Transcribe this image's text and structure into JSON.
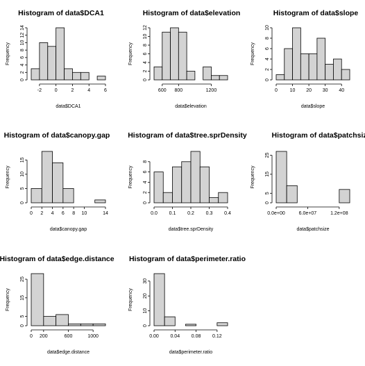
{
  "chart_data": [
    {
      "type": "bar",
      "title": "Histogram of data$DCA1",
      "xlabel": "data$DCA1",
      "ylabel": "Frequency",
      "bin_edges": [
        -3,
        -2,
        -1,
        0,
        1,
        2,
        3,
        4,
        5,
        6
      ],
      "values": [
        3,
        10,
        9,
        14,
        3,
        2,
        2,
        0,
        1
      ],
      "xticks": [
        {
          "value": -2,
          "label": "-2"
        },
        {
          "value": 0,
          "label": "0"
        },
        {
          "value": 2,
          "label": "2"
        },
        {
          "value": 4,
          "label": "4"
        },
        {
          "value": 6,
          "label": "6"
        }
      ],
      "yticks": [
        {
          "value": 0,
          "label": "0"
        },
        {
          "value": 2,
          "label": "2"
        },
        {
          "value": 4,
          "label": "4"
        },
        {
          "value": 6,
          "label": "6"
        },
        {
          "value": 8,
          "label": "8"
        },
        {
          "value": 10,
          "label": "10"
        },
        {
          "value": 12,
          "label": "12"
        },
        {
          "value": 14,
          "label": "14"
        }
      ],
      "ylim": [
        0,
        14
      ]
    },
    {
      "type": "bar",
      "title": "Histogram of data$elevation",
      "xlabel": "data$elevation",
      "ylabel": "Frequency",
      "bin_edges": [
        500,
        600,
        700,
        800,
        900,
        1000,
        1100,
        1200,
        1300,
        1400
      ],
      "values": [
        3,
        11,
        12,
        11,
        2,
        0,
        3,
        1,
        1
      ],
      "xticks": [
        {
          "value": 600,
          "label": "600"
        },
        {
          "value": 800,
          "label": "800"
        },
        {
          "value": 1200,
          "label": "1200"
        }
      ],
      "yticks": [
        {
          "value": 0,
          "label": "0"
        },
        {
          "value": 2,
          "label": "2"
        },
        {
          "value": 4,
          "label": "4"
        },
        {
          "value": 6,
          "label": "6"
        },
        {
          "value": 8,
          "label": "8"
        },
        {
          "value": 10,
          "label": "10"
        },
        {
          "value": 12,
          "label": "12"
        }
      ],
      "ylim": [
        0,
        12
      ]
    },
    {
      "type": "bar",
      "title": "Histogram of data$slope",
      "xlabel": "data$slope",
      "ylabel": "Frequency",
      "bin_edges": [
        0,
        5,
        10,
        15,
        20,
        25,
        30,
        35,
        40,
        45
      ],
      "values": [
        1,
        6,
        10,
        5,
        5,
        8,
        3,
        4,
        2
      ],
      "xticks": [
        {
          "value": 0,
          "label": "0"
        },
        {
          "value": 10,
          "label": "10"
        },
        {
          "value": 20,
          "label": "20"
        },
        {
          "value": 30,
          "label": "30"
        },
        {
          "value": 40,
          "label": "40"
        }
      ],
      "yticks": [
        {
          "value": 0,
          "label": "0"
        },
        {
          "value": 2,
          "label": "2"
        },
        {
          "value": 4,
          "label": "4"
        },
        {
          "value": 6,
          "label": "6"
        },
        {
          "value": 8,
          "label": "8"
        },
        {
          "value": 10,
          "label": "10"
        }
      ],
      "ylim": [
        0,
        10
      ]
    },
    {
      "type": "bar",
      "title": "Histogram of data$canopy.gap",
      "xlabel": "data$canopy.gap",
      "ylabel": "Frequency",
      "bin_edges": [
        0,
        2,
        4,
        6,
        8,
        10,
        12,
        14
      ],
      "values": [
        5,
        18,
        14,
        5,
        0,
        0,
        1
      ],
      "xticks": [
        {
          "value": 0,
          "label": "0"
        },
        {
          "value": 2,
          "label": "2"
        },
        {
          "value": 4,
          "label": "4"
        },
        {
          "value": 6,
          "label": "6"
        },
        {
          "value": 8,
          "label": "8"
        },
        {
          "value": 10,
          "label": "10"
        },
        {
          "value": 14,
          "label": "14"
        }
      ],
      "yticks": [
        {
          "value": 0,
          "label": "0"
        },
        {
          "value": 5,
          "label": "5"
        },
        {
          "value": 10,
          "label": "10"
        },
        {
          "value": 15,
          "label": "15"
        }
      ],
      "ylim": [
        0,
        18
      ]
    },
    {
      "type": "bar",
      "title": "Histogram of data$tree.sprDensity",
      "xlabel": "data$tree.sprDensity",
      "ylabel": "Frequency",
      "bin_edges": [
        0,
        0.05,
        0.1,
        0.15,
        0.2,
        0.25,
        0.3,
        0.35,
        0.4
      ],
      "values": [
        6,
        2,
        7,
        8,
        10,
        7,
        1,
        2
      ],
      "xticks": [
        {
          "value": 0,
          "label": "0.0"
        },
        {
          "value": 0.1,
          "label": "0.1"
        },
        {
          "value": 0.2,
          "label": "0.2"
        },
        {
          "value": 0.3,
          "label": "0.3"
        },
        {
          "value": 0.4,
          "label": "0.4"
        }
      ],
      "yticks": [
        {
          "value": 0,
          "label": "0"
        },
        {
          "value": 2,
          "label": "2"
        },
        {
          "value": 4,
          "label": "4"
        },
        {
          "value": 6,
          "label": "6"
        },
        {
          "value": 8,
          "label": "8"
        }
      ],
      "ylim": [
        0,
        10
      ]
    },
    {
      "type": "bar",
      "title": "Histogram of data$patchsize",
      "xlabel": "data$patchsize",
      "ylabel": "Frequency",
      "bin_edges": [
        0,
        20000000,
        40000000,
        60000000,
        80000000,
        100000000,
        120000000,
        140000000
      ],
      "values": [
        27,
        9,
        0,
        0,
        0,
        0,
        7
      ],
      "xticks": [
        {
          "value": 0,
          "label": "0.0e+00"
        },
        {
          "value": 60000000,
          "label": "6.0e+07"
        },
        {
          "value": 120000000,
          "label": "1.2e+08"
        }
      ],
      "yticks": [
        {
          "value": 0,
          "label": "0"
        },
        {
          "value": 5,
          "label": "5"
        },
        {
          "value": 15,
          "label": "15"
        },
        {
          "value": 25,
          "label": "25"
        }
      ],
      "ylim": [
        0,
        27
      ]
    },
    {
      "type": "bar",
      "title": "Histogram of data$edge.distance",
      "xlabel": "data$edge.distance",
      "ylabel": "Frequency",
      "bin_edges": [
        0,
        200,
        400,
        600,
        800,
        1000,
        1200
      ],
      "values": [
        28,
        5,
        6,
        1,
        1,
        1
      ],
      "xticks": [
        {
          "value": 0,
          "label": "0"
        },
        {
          "value": 200,
          "label": "200"
        },
        {
          "value": 600,
          "label": "600"
        },
        {
          "value": 1000,
          "label": "1000"
        }
      ],
      "yticks": [
        {
          "value": 0,
          "label": "0"
        },
        {
          "value": 5,
          "label": "5"
        },
        {
          "value": 15,
          "label": "15"
        },
        {
          "value": 25,
          "label": "25"
        }
      ],
      "ylim": [
        0,
        28
      ]
    },
    {
      "type": "bar",
      "title": "Histogram of data$perimeter.ratio",
      "xlabel": "data$perimeter.ratio",
      "ylabel": "Frequency",
      "bin_edges": [
        0,
        0.02,
        0.04,
        0.06,
        0.08,
        0.1,
        0.12,
        0.14
      ],
      "values": [
        35,
        6,
        0,
        1,
        0,
        0,
        2
      ],
      "xticks": [
        {
          "value": 0,
          "label": "0.00"
        },
        {
          "value": 0.04,
          "label": "0.04"
        },
        {
          "value": 0.08,
          "label": "0.08"
        },
        {
          "value": 0.12,
          "label": "0.12"
        }
      ],
      "yticks": [
        {
          "value": 0,
          "label": "0"
        },
        {
          "value": 10,
          "label": "10"
        },
        {
          "value": 20,
          "label": "20"
        },
        {
          "value": 30,
          "label": "30"
        }
      ],
      "ylim": [
        0,
        35
      ]
    }
  ]
}
